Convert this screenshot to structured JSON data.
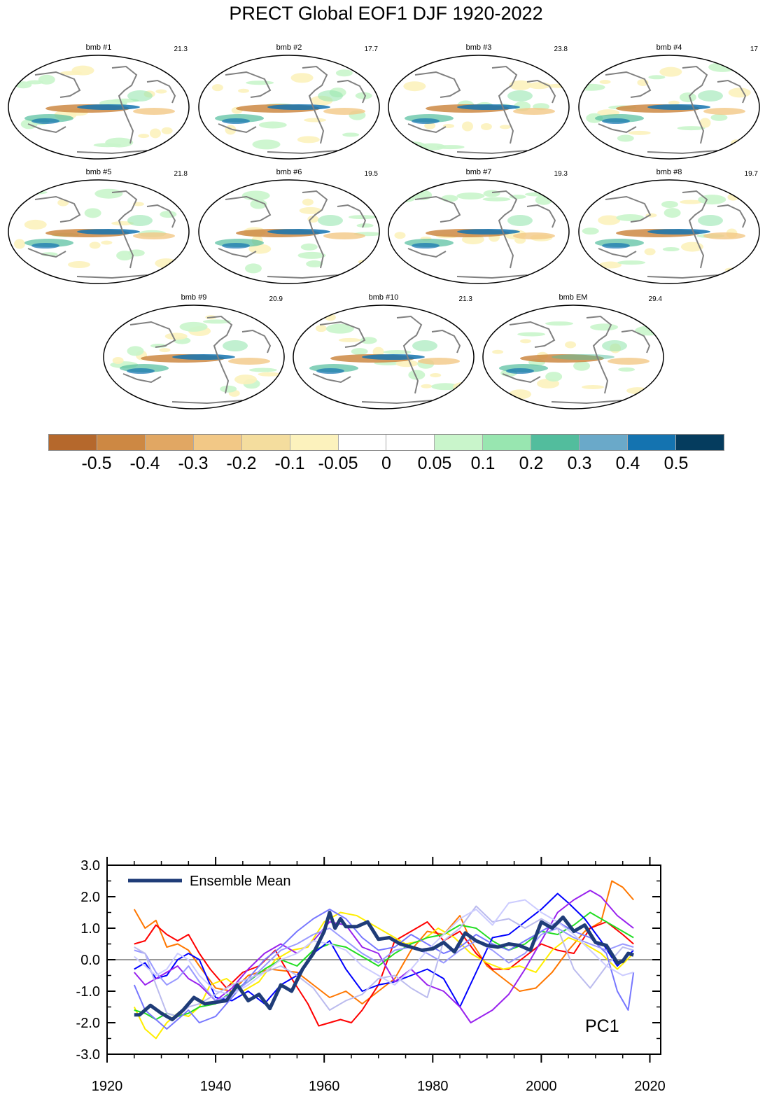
{
  "title": "PRECT Global EOF1 DJF 1920-2022",
  "panels": [
    {
      "name": "bmb #1",
      "value": "21.3"
    },
    {
      "name": "bmb #2",
      "value": "17.7"
    },
    {
      "name": "bmb #3",
      "value": "23.8"
    },
    {
      "name": "bmb #4",
      "value": "17"
    },
    {
      "name": "bmb #5",
      "value": "21.8"
    },
    {
      "name": "bmb #6",
      "value": "19.5"
    },
    {
      "name": "bmb #7",
      "value": "19.3"
    },
    {
      "name": "bmb #8",
      "value": "19.7"
    },
    {
      "name": "bmb #9",
      "value": "20.9"
    },
    {
      "name": "bmb #10",
      "value": "21.3"
    },
    {
      "name": "bmb EM",
      "value": "29.4"
    }
  ],
  "colorbar": {
    "colors": [
      "#b5682c",
      "#cd8843",
      "#e1a763",
      "#f2c886",
      "#f4dd9e",
      "#fcf2bd",
      "#ffffff",
      "#ffffff",
      "#c9f5cb",
      "#98e6b0",
      "#52bd9d",
      "#6aa9c9",
      "#1473b0",
      "#053c5e"
    ],
    "labels": [
      "-0.5",
      "-0.4",
      "-0.3",
      "-0.2",
      "-0.1",
      "-0.05",
      "0",
      "0.05",
      "0.1",
      "0.2",
      "0.3",
      "0.4",
      "0.5"
    ]
  },
  "chart_data": {
    "type": "line",
    "xlim": [
      1920,
      2022
    ],
    "ylim": [
      -3.0,
      3.0
    ],
    "xticks": [
      "1920",
      "1940",
      "1960",
      "1980",
      "2000",
      "2020"
    ],
    "yticks": [
      "3.0",
      "2.0",
      "1.0",
      "0.0",
      "-1.0",
      "-2.0",
      "-3.0"
    ],
    "annotation": "PC1",
    "legend": {
      "label": "Ensemble Mean",
      "position": "top-left"
    },
    "ensemble_mean": {
      "name": "Ensemble Mean",
      "color": "#1f3c78",
      "x": [
        1925,
        1926,
        1928,
        1930,
        1932,
        1934,
        1936,
        1938,
        1940,
        1942,
        1944,
        1946,
        1948,
        1950,
        1952,
        1954,
        1956,
        1958,
        1960,
        1961,
        1962,
        1963,
        1964,
        1966,
        1968,
        1970,
        1972,
        1974,
        1976,
        1978,
        1980,
        1982,
        1984,
        1986,
        1988,
        1990,
        1992,
        1994,
        1996,
        1998,
        2000,
        2002,
        2004,
        2006,
        2008,
        2010,
        2012,
        2014,
        2015,
        2016,
        2017
      ],
      "values": [
        -1.75,
        -1.75,
        -1.45,
        -1.7,
        -1.9,
        -1.6,
        -1.2,
        -1.4,
        -1.35,
        -1.3,
        -0.8,
        -1.3,
        -1.1,
        -1.55,
        -0.8,
        -1.0,
        -0.3,
        0.2,
        0.9,
        1.5,
        1.0,
        1.3,
        1.05,
        1.05,
        1.2,
        0.65,
        0.7,
        0.5,
        0.4,
        0.3,
        0.35,
        0.55,
        0.25,
        0.85,
        0.6,
        0.45,
        0.4,
        0.5,
        0.45,
        0.3,
        1.2,
        1.0,
        1.35,
        0.9,
        1.1,
        0.55,
        0.45,
        -0.1,
        -0.05,
        0.2,
        0.15
      ]
    },
    "series": [
      {
        "color": "#ff7700",
        "x": [
          1925,
          1927,
          1929,
          1931,
          1933,
          1935,
          1937,
          1940,
          1943,
          1946,
          1950,
          1955,
          1958,
          1961,
          1964,
          1967,
          1970,
          1973,
          1976,
          1979,
          1982,
          1985,
          1987,
          1990,
          1993,
          1996,
          1999,
          2002,
          2005,
          2008,
          2011,
          2013,
          2015,
          2017
        ],
        "values": [
          1.6,
          1.0,
          1.25,
          0.4,
          0.5,
          0.3,
          -0.2,
          -0.9,
          -1.0,
          -0.5,
          -0.3,
          -0.4,
          -0.8,
          -1.2,
          -1.0,
          -1.4,
          -1.0,
          -0.6,
          0.3,
          0.9,
          0.8,
          1.4,
          0.6,
          -0.2,
          -0.6,
          -1.0,
          -0.9,
          -0.4,
          0.3,
          0.9,
          1.2,
          2.5,
          2.3,
          1.9
        ]
      },
      {
        "color": "#ff0000",
        "x": [
          1925,
          1927,
          1929,
          1931,
          1933,
          1935,
          1937,
          1939,
          1942,
          1945,
          1948,
          1951,
          1954,
          1957,
          1959,
          1961,
          1963,
          1965,
          1967,
          1970,
          1973,
          1976,
          1979,
          1982,
          1985,
          1988,
          1991,
          1994,
          1997,
          2000,
          2003,
          2006,
          2009,
          2012,
          2015,
          2017
        ],
        "values": [
          0.5,
          0.6,
          1.1,
          0.8,
          0.6,
          0.8,
          0.2,
          -0.3,
          -0.9,
          -0.4,
          -0.2,
          0.3,
          -0.6,
          -1.4,
          -2.1,
          -2.0,
          -1.9,
          -2.0,
          -1.6,
          -0.8,
          0.6,
          0.9,
          1.2,
          0.6,
          0.9,
          0.2,
          -0.3,
          -0.3,
          0.1,
          0.5,
          0.3,
          0.2,
          1.0,
          1.2,
          0.8,
          0.5
        ]
      },
      {
        "color": "#ffee00",
        "x": [
          1925,
          1927,
          1929,
          1931,
          1933,
          1935,
          1937,
          1939,
          1942,
          1945,
          1948,
          1951,
          1954,
          1957,
          1960,
          1963,
          1966,
          1969,
          1972,
          1975,
          1978,
          1981,
          1984,
          1987,
          1990,
          1993,
          1996,
          1999,
          2002,
          2005,
          2008,
          2011,
          2014,
          2017
        ],
        "values": [
          -1.5,
          -2.2,
          -2.5,
          -2.0,
          -1.7,
          -1.8,
          -1.5,
          -0.8,
          -0.6,
          -1.0,
          -0.7,
          0.0,
          0.3,
          0.4,
          1.2,
          1.5,
          1.4,
          1.1,
          0.8,
          0.5,
          0.6,
          1.0,
          0.7,
          0.2,
          -0.1,
          -0.3,
          -0.2,
          -0.4,
          0.3,
          0.7,
          0.5,
          0.2,
          -0.3,
          0.2
        ]
      },
      {
        "color": "#22dd22",
        "x": [
          1925,
          1927,
          1929,
          1931,
          1933,
          1935,
          1937,
          1940,
          1943,
          1946,
          1949,
          1952,
          1955,
          1958,
          1961,
          1964,
          1967,
          1970,
          1973,
          1976,
          1979,
          1982,
          1985,
          1988,
          1991,
          1994,
          1997,
          2000,
          2003,
          2006,
          2009,
          2012,
          2015,
          2017
        ],
        "values": [
          -1.6,
          -1.7,
          -1.9,
          -1.7,
          -1.8,
          -1.7,
          -1.5,
          -1.4,
          -1.0,
          -0.7,
          -0.3,
          0.0,
          -0.2,
          0.3,
          0.5,
          0.4,
          0.1,
          -0.2,
          0.2,
          0.5,
          0.7,
          0.8,
          1.1,
          1.0,
          0.6,
          0.3,
          0.5,
          0.9,
          0.8,
          1.1,
          1.5,
          1.2,
          0.9,
          0.7
        ]
      },
      {
        "color": "#0000ff",
        "x": [
          1925,
          1927,
          1929,
          1931,
          1933,
          1935,
          1937,
          1940,
          1943,
          1946,
          1949,
          1952,
          1955,
          1958,
          1961,
          1964,
          1967,
          1970,
          1973,
          1976,
          1979,
          1982,
          1985,
          1988,
          1991,
          1994,
          1997,
          2000,
          2003,
          2005,
          2008,
          2011,
          2014,
          2017
        ],
        "values": [
          -0.3,
          -0.1,
          -0.6,
          -0.5,
          0.0,
          0.2,
          0.0,
          -1.2,
          -1.3,
          -1.0,
          -1.4,
          -0.8,
          -0.5,
          0.2,
          0.6,
          -0.3,
          -1.0,
          -0.8,
          -0.7,
          -0.5,
          -0.3,
          -0.6,
          -1.5,
          -0.4,
          0.7,
          0.8,
          1.2,
          1.6,
          2.1,
          1.8,
          1.3,
          0.6,
          -0.2,
          0.3
        ]
      },
      {
        "color": "#9922ee",
        "x": [
          1925,
          1927,
          1929,
          1931,
          1933,
          1935,
          1937,
          1940,
          1943,
          1946,
          1949,
          1952,
          1955,
          1958,
          1961,
          1964,
          1967,
          1970,
          1973,
          1976,
          1979,
          1982,
          1985,
          1987,
          1989,
          1991,
          1994,
          1997,
          2000,
          2003,
          2006,
          2009,
          2011,
          2014,
          2017
        ],
        "values": [
          -0.4,
          -0.8,
          -0.6,
          -0.4,
          -0.2,
          -0.6,
          -0.8,
          -1.3,
          -0.9,
          -0.3,
          0.2,
          0.5,
          0.2,
          0.6,
          1.2,
          1.1,
          0.4,
          0.2,
          -0.7,
          -0.3,
          -0.8,
          -1.0,
          -1.5,
          -2.0,
          -1.8,
          -1.6,
          -1.1,
          -0.3,
          0.6,
          1.5,
          1.9,
          2.2,
          2.0,
          1.4,
          1.0
        ]
      },
      {
        "color": "#7777ff",
        "x": [
          1925,
          1927,
          1929,
          1931,
          1933,
          1935,
          1937,
          1940,
          1943,
          1946,
          1949,
          1952,
          1955,
          1958,
          1961,
          1964,
          1967,
          1970,
          1973,
          1976,
          1979,
          1982,
          1985,
          1988,
          1991,
          1994,
          1997,
          2000,
          2003,
          2006,
          2009,
          2012,
          2014,
          2016,
          2017
        ],
        "values": [
          -0.8,
          -1.6,
          -1.9,
          -2.2,
          -1.9,
          -1.6,
          -2.0,
          -1.8,
          -1.2,
          -0.6,
          0.0,
          0.4,
          0.9,
          1.3,
          1.6,
          1.3,
          0.7,
          0.3,
          0.4,
          0.8,
          0.5,
          0.2,
          0.4,
          0.8,
          0.5,
          0.3,
          0.6,
          0.9,
          1.2,
          0.9,
          0.7,
          0.2,
          -1.0,
          -1.6,
          -0.4
        ]
      },
      {
        "color": "#9999ff",
        "x": [
          1925,
          1927,
          1929,
          1931,
          1933,
          1935,
          1937,
          1940,
          1943,
          1946,
          1949,
          1952,
          1955,
          1958,
          1961,
          1964,
          1967,
          1970,
          1973,
          1976,
          1979,
          1982,
          1985,
          1988,
          1991,
          1994,
          1997,
          2000,
          2003,
          2006,
          2009,
          2012,
          2015,
          2017
        ],
        "values": [
          0.3,
          0.2,
          -0.4,
          -0.8,
          -0.6,
          -0.2,
          -0.7,
          -1.3,
          -1.1,
          -0.7,
          -0.2,
          0.3,
          0.5,
          0.8,
          1.0,
          0.6,
          0.2,
          -0.1,
          0.3,
          0.4,
          0.2,
          -0.1,
          0.3,
          0.6,
          0.3,
          -0.1,
          0.2,
          0.8,
          1.0,
          0.7,
          0.5,
          0.3,
          0.5,
          0.4
        ]
      },
      {
        "color": "#bbbbee",
        "x": [
          1925,
          1927,
          1929,
          1931,
          1933,
          1935,
          1937,
          1940,
          1943,
          1946,
          1949,
          1952,
          1955,
          1958,
          1961,
          1964,
          1967,
          1970,
          1973,
          1976,
          1979,
          1982,
          1985,
          1988,
          1991,
          1994,
          1997,
          2000,
          2003,
          2006,
          2009,
          2012,
          2015,
          2017
        ],
        "values": [
          0.4,
          0.2,
          -0.8,
          -1.7,
          -1.8,
          -1.5,
          -1.4,
          -1.1,
          -0.8,
          -0.6,
          -0.4,
          -0.2,
          -0.5,
          -0.9,
          -1.6,
          -1.3,
          -1.1,
          -0.6,
          -0.5,
          -0.9,
          -1.2,
          0.6,
          1.0,
          1.7,
          1.2,
          1.3,
          1.0,
          1.3,
          1.0,
          -0.3,
          -0.9,
          -0.2,
          0.4,
          0.3
        ]
      },
      {
        "color": "#ccccff",
        "x": [
          1925,
          1927,
          1929,
          1931,
          1933,
          1935,
          1937,
          1940,
          1943,
          1946,
          1949,
          1952,
          1955,
          1958,
          1961,
          1964,
          1967,
          1970,
          1973,
          1976,
          1979,
          1982,
          1985,
          1988,
          1991,
          1994,
          1997,
          2000,
          2003,
          2006,
          2009,
          2012,
          2015,
          2017
        ],
        "values": [
          0.1,
          -0.2,
          -0.5,
          -0.3,
          0.2,
          0.0,
          -0.5,
          -1.0,
          -1.1,
          -0.8,
          -0.4,
          0.0,
          0.2,
          0.6,
          0.5,
          0.3,
          -0.2,
          -0.5,
          -0.8,
          -0.3,
          0.3,
          0.8,
          1.3,
          1.6,
          1.1,
          1.8,
          1.9,
          1.5,
          1.2,
          0.8,
          0.3,
          -0.2,
          -0.5,
          -0.4
        ]
      }
    ]
  }
}
